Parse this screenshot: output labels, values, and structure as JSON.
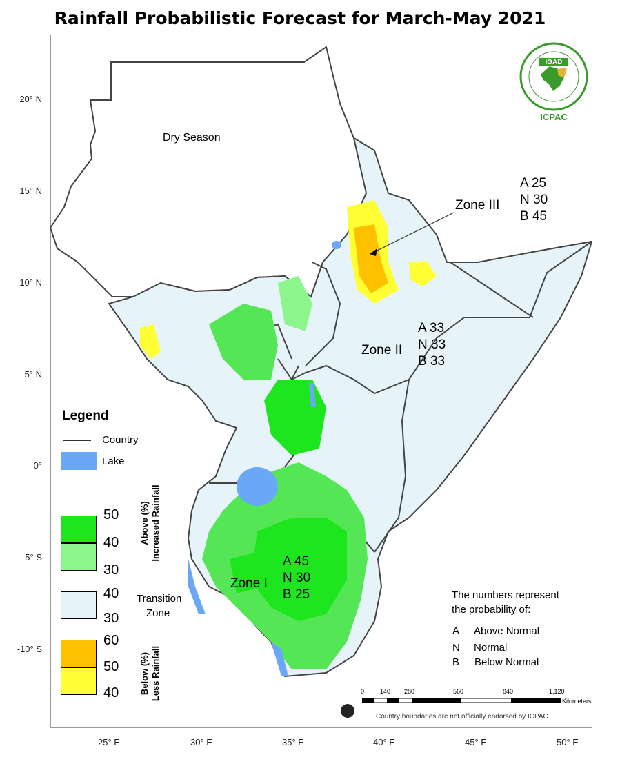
{
  "title": "Rainfall Probabilistic Forecast for March-May 2021",
  "logo": {
    "top_text": "IGAD",
    "bottom_text": "ICPAC"
  },
  "latitude_labels": [
    "20° N",
    "15° N",
    "10° N",
    "5° N",
    "0°",
    "-5° S",
    "-10° S"
  ],
  "longitude_labels": [
    "25° E",
    "30° E",
    "35° E",
    "40° E",
    "45° E",
    "50° E"
  ],
  "map_labels": {
    "dry_season": "Dry Season"
  },
  "zones": [
    {
      "name": "Zone III",
      "A": "A 25",
      "N": "N 30",
      "B": "B 45"
    },
    {
      "name": "Zone II",
      "A": "A 33",
      "N": "N 33",
      "B": "B 33"
    },
    {
      "name": "Zone I",
      "A": "A 45",
      "N": "N 30",
      "B": "B 25"
    }
  ],
  "legend": {
    "title": "Legend",
    "country": "Country",
    "lake": "Lake",
    "above_caption": "Above (%)",
    "above_caption2": "Increased Rainfall",
    "transition_caption": "Transition",
    "transition_caption2": "Zone",
    "below_caption": "Below (%)",
    "below_caption2": "Less Rainfall",
    "above_values": [
      "50",
      "40",
      "30"
    ],
    "transition_values": [
      "40",
      "30"
    ],
    "below_values": [
      "60",
      "50",
      "40"
    ],
    "colors": {
      "above_high": "#1ee61e",
      "above_low": "#8cf58c",
      "transition": "#e6f4fa",
      "below_high": "#ffc000",
      "below_low": "#ffff33",
      "lake": "#6aa8f7"
    }
  },
  "probability_note": {
    "line1": "The numbers represent",
    "line2": "the probability of:",
    "items": [
      {
        "key": "A",
        "label": "Above Normal"
      },
      {
        "key": "N",
        "label": "Normal"
      },
      {
        "key": "B",
        "label": "Below Normal"
      }
    ]
  },
  "scale": {
    "ticks": [
      "0",
      "140",
      "280",
      "560",
      "840",
      "1,120"
    ],
    "unit": "Kilometers"
  },
  "disclaimer": "Country boundaries are not officially endorsed by ICPAC"
}
